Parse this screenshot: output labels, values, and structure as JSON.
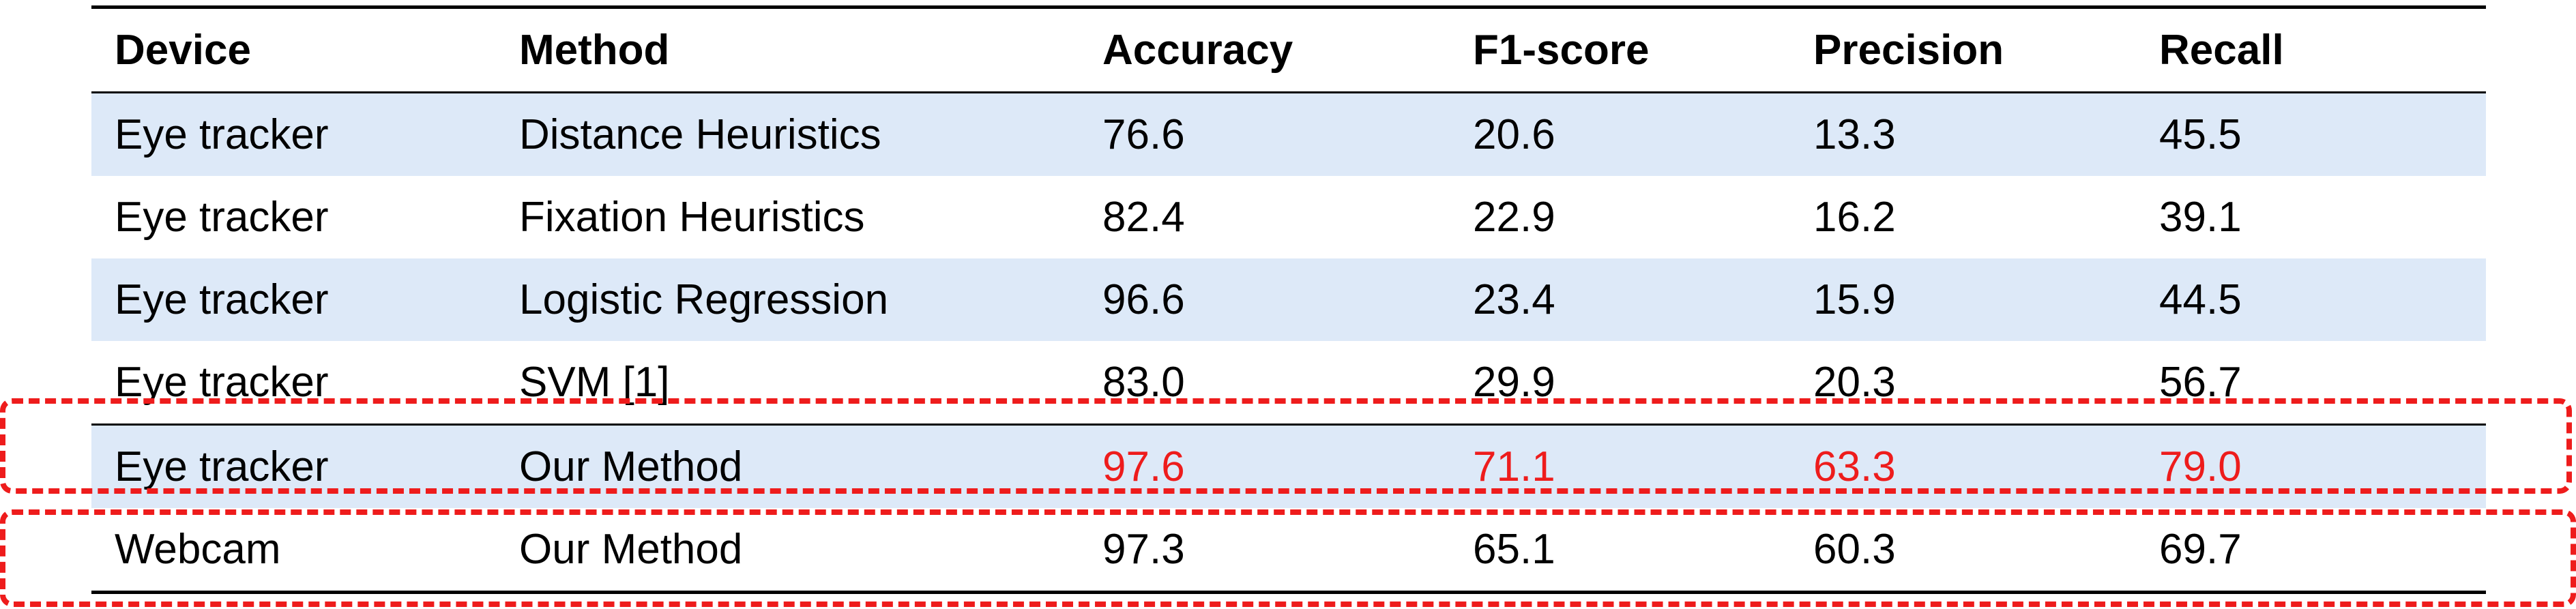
{
  "table": {
    "headers": [
      "Device",
      "Method",
      "Accuracy",
      "F1-score",
      "Precision",
      "Recall"
    ],
    "rows": [
      [
        "Eye tracker",
        "Distance Heuristics",
        "76.6",
        "20.6",
        "13.3",
        "45.5"
      ],
      [
        "Eye tracker",
        "Fixation Heuristics",
        "82.4",
        "22.9",
        "16.2",
        "39.1"
      ],
      [
        "Eye tracker",
        "Logistic Regression",
        "96.6",
        "23.4",
        "15.9",
        "44.5"
      ],
      [
        "Eye tracker",
        "SVM [1]",
        "83.0",
        "29.9",
        "20.3",
        "56.7"
      ],
      [
        "Eye tracker",
        "Our Method",
        "97.6",
        "71.1",
        "63.3",
        "79.0"
      ],
      [
        "Webcam",
        "Our Method",
        "97.3",
        "65.1",
        "60.3",
        "69.7"
      ]
    ]
  },
  "colors": {
    "row_shade": "#dde9f8",
    "highlight_text": "#ee1c1c",
    "dashed_box": "#ee1c1c"
  }
}
